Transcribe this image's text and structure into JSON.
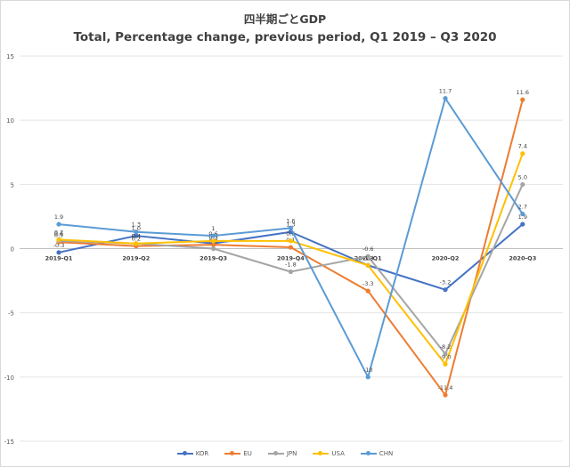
{
  "chart_data": {
    "type": "line",
    "title": "四半期ごとGDP",
    "subtitle": "Total, Percentage change, previous period, Q1 2019 – Q3 2020",
    "categories": [
      "2019-Q1",
      "2019-Q2",
      "2019-Q3",
      "2019-Q4",
      "2020-Q1",
      "2020-Q2",
      "2020-Q3"
    ],
    "ylim": [
      -15,
      15
    ],
    "yticks": [
      "15",
      "10",
      "5",
      "0",
      "-5",
      "-10",
      "-15"
    ],
    "grid": true,
    "legend_position": "bottom",
    "series": [
      {
        "name": "KOR",
        "color": "#4472c4",
        "values": [
          -0.3,
          1.0,
          0.4,
          1.3,
          -1.3,
          -3.2,
          1.9
        ],
        "labels": [
          "-0.3",
          "1.0",
          "0.4",
          "1.3",
          "-1.3",
          "-3.2",
          "1.9"
        ]
      },
      {
        "name": "EU",
        "color": "#ed7d31",
        "values": [
          0.5,
          0.2,
          0.3,
          0.1,
          -3.3,
          -11.4,
          11.6
        ],
        "labels": [
          "0.5",
          "0.2",
          "0.3",
          "0.1",
          "-3.3",
          "-11.4",
          "11.6"
        ]
      },
      {
        "name": "JPN",
        "color": "#a5a5a5",
        "values": [
          0.6,
          0.4,
          0.0,
          -1.8,
          -0.6,
          -8.2,
          5.0
        ],
        "labels": [
          "0.6",
          "0.4",
          "0.0",
          "-1.8",
          "-0.6",
          "-8.2",
          "5.0"
        ]
      },
      {
        "name": "USA",
        "color": "#ffc000",
        "values": [
          0.7,
          0.4,
          0.6,
          0.6,
          -1.3,
          -9.0,
          7.4
        ],
        "labels": [
          "0.7",
          "0.4",
          "0.6",
          "0.6",
          "-1.3",
          "-9.0",
          "7.4"
        ]
      },
      {
        "name": "CHN",
        "color": "#5b9bd5",
        "values": [
          1.9,
          1.3,
          1.0,
          1.6,
          -10.0,
          11.7,
          2.7
        ],
        "labels": [
          "1.9",
          "1.3",
          "1",
          "1.6",
          "-10",
          "11.7",
          "2.7"
        ]
      }
    ]
  }
}
